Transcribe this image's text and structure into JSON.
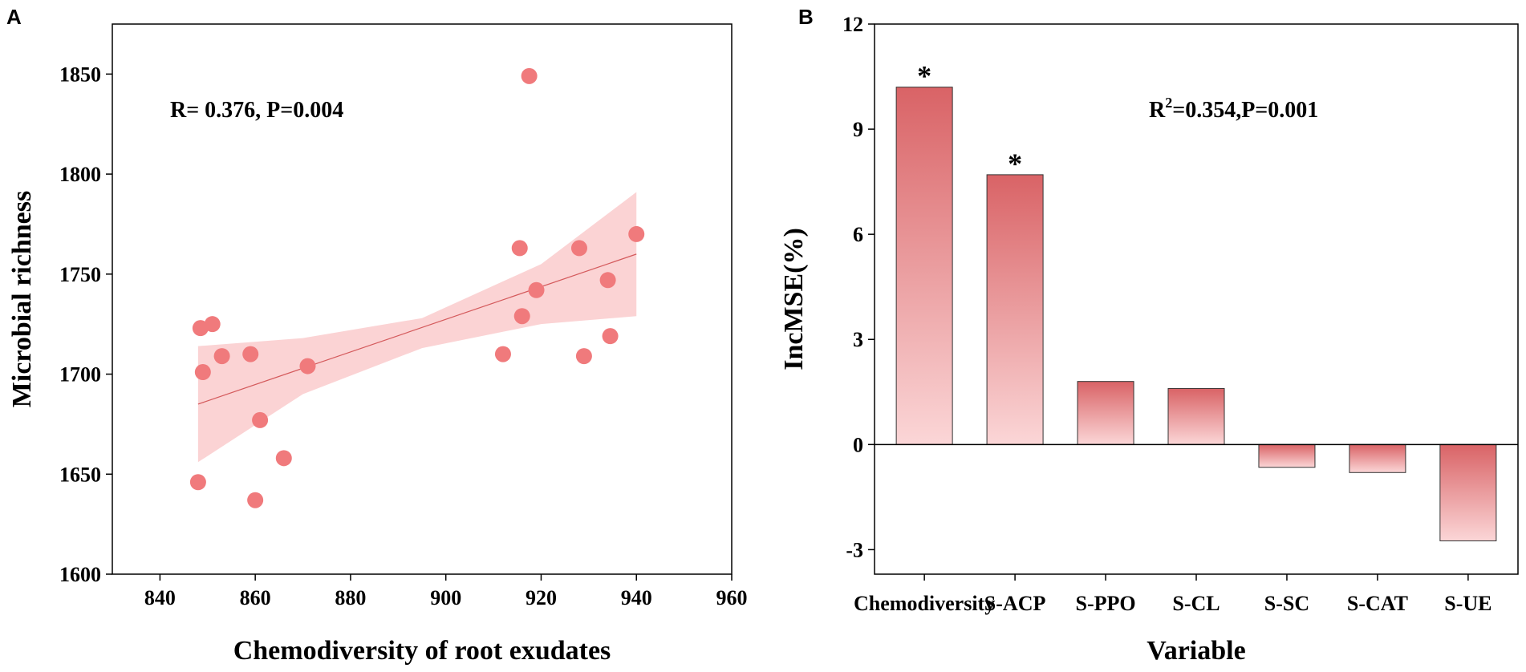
{
  "chart_data": [
    {
      "panel": "A",
      "type": "scatter",
      "title": "",
      "xlabel": "Chemodiversity of root exudates",
      "ylabel": "Microbial richness",
      "xlim": [
        830,
        960
      ],
      "ylim": [
        1600,
        1875
      ],
      "xticks": [
        840,
        860,
        880,
        900,
        920,
        940,
        960
      ],
      "yticks": [
        1600,
        1650,
        1700,
        1750,
        1800,
        1850
      ],
      "annotation": "R= 0.376, P=0.004",
      "points": [
        {
          "x": 848,
          "y": 1646
        },
        {
          "x": 848.5,
          "y": 1723
        },
        {
          "x": 849,
          "y": 1701
        },
        {
          "x": 851,
          "y": 1725
        },
        {
          "x": 853,
          "y": 1709
        },
        {
          "x": 859,
          "y": 1710
        },
        {
          "x": 860,
          "y": 1637
        },
        {
          "x": 861,
          "y": 1677
        },
        {
          "x": 866,
          "y": 1658
        },
        {
          "x": 871,
          "y": 1704
        },
        {
          "x": 912,
          "y": 1710
        },
        {
          "x": 915.5,
          "y": 1763
        },
        {
          "x": 916,
          "y": 1729
        },
        {
          "x": 917.5,
          "y": 1849
        },
        {
          "x": 919,
          "y": 1742
        },
        {
          "x": 928,
          "y": 1763
        },
        {
          "x": 929,
          "y": 1709
        },
        {
          "x": 934,
          "y": 1747
        },
        {
          "x": 934.5,
          "y": 1719
        },
        {
          "x": 940,
          "y": 1770
        }
      ],
      "fit": {
        "x": [
          848,
          940
        ],
        "y": [
          1685,
          1760
        ]
      },
      "ci_upper": {
        "x": [
          848,
          870,
          895,
          920,
          940
        ],
        "y": [
          1714,
          1718,
          1728,
          1755,
          1791
        ]
      },
      "ci_lower": {
        "x": [
          848,
          870,
          895,
          920,
          940
        ],
        "y": [
          1656,
          1690,
          1713,
          1725,
          1729
        ]
      },
      "colors": {
        "point": "#f07a7c",
        "line": "#d45a5c",
        "band": "#fbd3d4"
      }
    },
    {
      "panel": "B",
      "type": "bar",
      "title": "",
      "xlabel": "Variable",
      "ylabel": "IncMSE(%)",
      "ylim": [
        -3.7,
        12
      ],
      "yticks": [
        -3,
        0,
        3,
        6,
        9,
        12
      ],
      "ytick_labels": [
        "-3",
        "0",
        "3",
        "6",
        "9",
        "12"
      ],
      "annotation_main": "R",
      "annotation_sup": "2",
      "annotation_rest": "=0.354,P=0.001",
      "categories": [
        "Chemodiversity",
        "S-ACP",
        "S-PPO",
        "S-CL",
        "S-SC",
        "S-CAT",
        "S-UE"
      ],
      "values": [
        10.2,
        7.7,
        1.8,
        1.6,
        -0.65,
        -0.8,
        -2.75
      ],
      "significance": [
        "*",
        "*",
        "",
        "",
        "",
        "",
        ""
      ],
      "colors": {
        "bar_dark": "#d96366",
        "bar_light": "#fbd6d7"
      }
    }
  ],
  "panel_labels": {
    "a": "A",
    "b": "B"
  }
}
